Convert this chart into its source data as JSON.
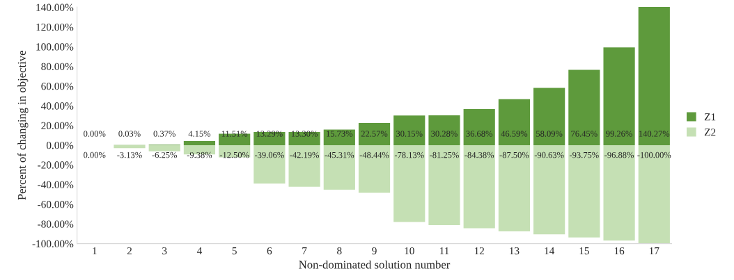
{
  "chart_data": {
    "type": "bar",
    "stacked": true,
    "xlabel": "Non-dominated solution number",
    "ylabel": "Percent of changing in objective",
    "categories": [
      "1",
      "2",
      "3",
      "4",
      "5",
      "6",
      "7",
      "8",
      "9",
      "10",
      "11",
      "12",
      "13",
      "14",
      "15",
      "16",
      "17"
    ],
    "series": [
      {
        "name": "Z1",
        "color": "#5e9a3c",
        "values": [
          0.0,
          0.03,
          0.37,
          4.15,
          11.51,
          13.29,
          13.3,
          15.73,
          22.57,
          30.15,
          30.28,
          36.68,
          46.59,
          58.09,
          76.45,
          99.26,
          140.27
        ],
        "value_labels": [
          "0.00%",
          "0.03%",
          "0.37%",
          "4.15%",
          "11.51%",
          "13.29%",
          "13.30%",
          "15.73%",
          "22.57%",
          "30.15%",
          "30.28%",
          "36.68%",
          "46.59%",
          "58.09%",
          "76.45%",
          "99.26%",
          "140.27%"
        ]
      },
      {
        "name": "Z2",
        "color": "#c5e0b4",
        "values": [
          0.0,
          -3.13,
          -6.25,
          -9.38,
          -12.5,
          -39.06,
          -42.19,
          -45.31,
          -48.44,
          -78.13,
          -81.25,
          -84.38,
          -87.5,
          -90.63,
          -93.75,
          -96.88,
          -100.0
        ],
        "value_labels": [
          "0.00%",
          "-3.13%",
          "-6.25%",
          "-9.38%",
          "-12.50%",
          "-39.06%",
          "-42.19%",
          "-45.31%",
          "-48.44%",
          "-78.13%",
          "-81.25%",
          "-84.38%",
          "-87.50%",
          "-90.63%",
          "-93.75%",
          "-96.88%",
          "-100.00%"
        ]
      }
    ],
    "ylim": [
      -100,
      140.27
    ],
    "yticks": [
      {
        "value": -100,
        "label": "-100.00%"
      },
      {
        "value": -80,
        "label": "-80.00%"
      },
      {
        "value": -60,
        "label": "-60.00%"
      },
      {
        "value": -40,
        "label": "-40.00%"
      },
      {
        "value": -20,
        "label": "-20.00%"
      },
      {
        "value": 0,
        "label": "0.00%"
      },
      {
        "value": 20,
        "label": "20.00%"
      },
      {
        "value": 40,
        "label": "40.00%"
      },
      {
        "value": 60,
        "label": "60.00%"
      },
      {
        "value": 80,
        "label": "80.00%"
      },
      {
        "value": 100,
        "label": "100.00%"
      },
      {
        "value": 120,
        "label": "120.00%"
      },
      {
        "value": 140,
        "label": "140.00%"
      }
    ],
    "grid": false,
    "legend": "right"
  }
}
